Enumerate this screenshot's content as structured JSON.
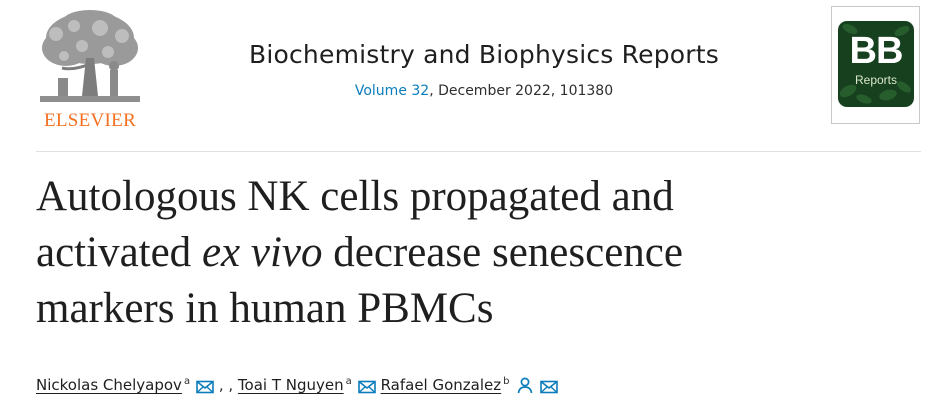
{
  "publisher": {
    "name": "ELSEVIER",
    "logo_icon": "elsevier-tree-logo",
    "name_color": "#f37021"
  },
  "journal": {
    "title": "Biochemistry and Biophysics Reports",
    "volume_link": "Volume 32",
    "issue_rest": ", December 2022, 101380",
    "link_color": "#0c7dbb"
  },
  "cover": {
    "main_text": "BB",
    "sub_text": "Reports",
    "background": "#17401f"
  },
  "article": {
    "title_line1": "Autologous NK cells propagated and",
    "title_line2_start": "activated ",
    "title_line2_italic": "ex vivo",
    "title_line2_end": " decrease senescence",
    "title_line3": "markers in human PBMCs"
  },
  "authors": [
    {
      "name": "Nickolas Chelyapov",
      "sup": "a",
      "icons": [
        "envelope-icon"
      ],
      "after": " , , "
    },
    {
      "name": "Toai T Nguyen",
      "sup": "a",
      "icons": [
        "envelope-icon"
      ],
      "after": " "
    },
    {
      "name": "Rafael Gonzalez",
      "sup": "b",
      "icons": [
        "person-icon",
        "envelope-icon"
      ],
      "after": ""
    }
  ],
  "icon_color": "#0c7dbb"
}
